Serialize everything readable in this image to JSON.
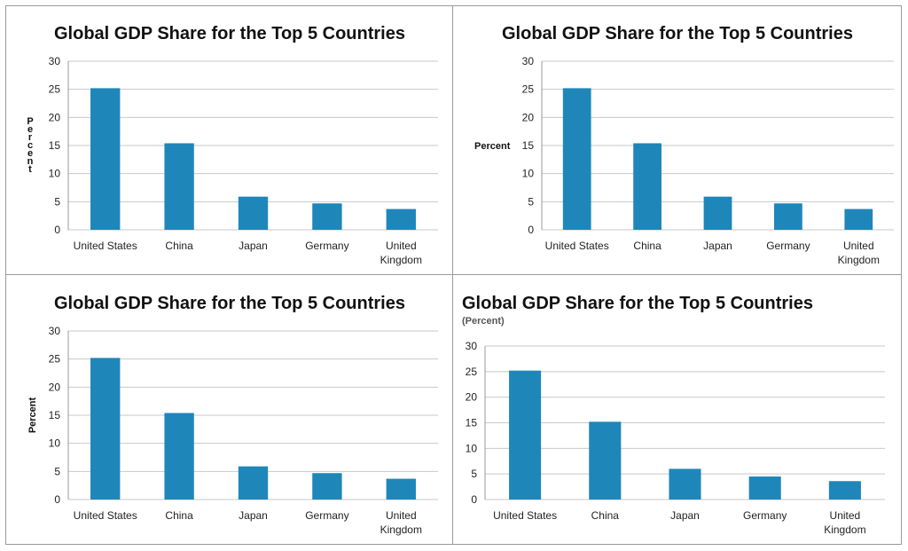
{
  "charts": [
    {
      "ylabel_style": "stacked",
      "subtitle": ""
    },
    {
      "ylabel_style": "horizontal",
      "subtitle": ""
    },
    {
      "ylabel_style": "rotated",
      "subtitle": ""
    },
    {
      "ylabel_style": "none",
      "subtitle": "(Percent)"
    }
  ],
  "chart_data": [
    {
      "type": "bar",
      "title": "Global GDP Share for the Top 5 Countries",
      "subtitle": "",
      "xlabel": "",
      "ylabel": "Percent",
      "categories": [
        "United States",
        "China",
        "Japan",
        "Germany",
        "United Kingdom"
      ],
      "values": [
        25.2,
        15.4,
        5.9,
        4.7,
        3.7
      ],
      "ylim": [
        0,
        30
      ],
      "yticks": [
        0,
        5,
        10,
        15,
        20,
        25,
        30
      ],
      "grid": true,
      "color": "#1f86ba"
    },
    {
      "type": "bar",
      "title": "Global GDP Share for the Top 5 Countries",
      "subtitle": "",
      "xlabel": "",
      "ylabel": "Percent",
      "categories": [
        "United States",
        "China",
        "Japan",
        "Germany",
        "United Kingdom"
      ],
      "values": [
        25.2,
        15.4,
        5.9,
        4.7,
        3.7
      ],
      "ylim": [
        0,
        30
      ],
      "yticks": [
        0,
        5,
        10,
        15,
        20,
        25,
        30
      ],
      "grid": true,
      "color": "#1f86ba"
    },
    {
      "type": "bar",
      "title": "Global GDP Share for the Top 5 Countries",
      "subtitle": "",
      "xlabel": "",
      "ylabel": "Percent",
      "categories": [
        "United States",
        "China",
        "Japan",
        "Germany",
        "United Kingdom"
      ],
      "values": [
        25.2,
        15.4,
        5.9,
        4.7,
        3.7
      ],
      "ylim": [
        0,
        30
      ],
      "yticks": [
        0,
        5,
        10,
        15,
        20,
        25,
        30
      ],
      "grid": true,
      "color": "#1f86ba"
    },
    {
      "type": "bar",
      "title": "Global GDP Share for the Top 5 Countries",
      "subtitle": "(Percent)",
      "xlabel": "",
      "ylabel": "",
      "categories": [
        "United States",
        "China",
        "Japan",
        "Germany",
        "United Kingdom"
      ],
      "values": [
        25.2,
        15.2,
        6.0,
        4.5,
        3.6
      ],
      "ylim": [
        0,
        30
      ],
      "yticks": [
        0,
        5,
        10,
        15,
        20,
        25,
        30
      ],
      "grid": true,
      "color": "#1f86ba"
    }
  ]
}
